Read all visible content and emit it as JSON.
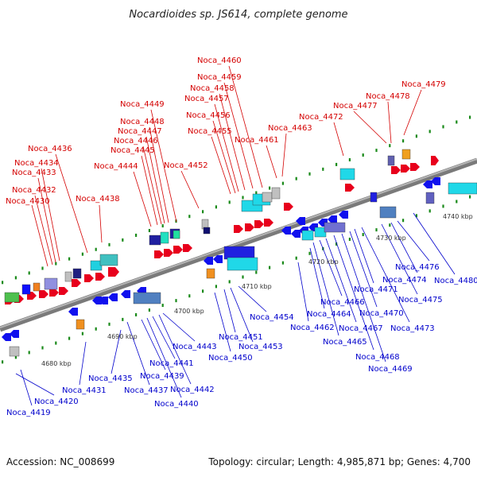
{
  "title": "Nocardioides sp. JS614, complete genome",
  "footer": {
    "accession": "Accession: NC_008699",
    "summary": "Topology: circular; Length: 4,985,871 bp; Genes: 4,700"
  },
  "colors": {
    "forward_label": "#d40000",
    "reverse_label": "#0000cc",
    "backbone": "#8c8c8c",
    "tick": "#1a8a1a"
  },
  "scale_labels": [
    "4680 kbp",
    "4690 kbp",
    "4700 kbp",
    "4710 kbp",
    "4720 kbp",
    "4730 kbp",
    "4740 kbp"
  ],
  "forward_genes": [
    "Noca_4430",
    "Noca_4432",
    "Noca_4433",
    "Noca_4434",
    "Noca_4436",
    "Noca_4438",
    "Noca_4444",
    "Noca_4445",
    "Noca_4446",
    "Noca_4447",
    "Noca_4448",
    "Noca_4449",
    "Noca_4452",
    "Noca_4455",
    "Noca_4456",
    "Noca_4457",
    "Noca_4458",
    "Noca_4459",
    "Noca_4460",
    "Noca_4461",
    "Noca_4463",
    "Noca_4472",
    "Noca_4477",
    "Noca_4478",
    "Noca_4479"
  ],
  "reverse_genes": [
    "Noca_4419",
    "Noca_4420",
    "Noca_4431",
    "Noca_4435",
    "Noca_4437",
    "Noca_4439",
    "Noca_4440",
    "Noca_4441",
    "Noca_4442",
    "Noca_4443",
    "Noca_4450",
    "Noca_4451",
    "Noca_4453",
    "Noca_4454",
    "Noca_4462",
    "Noca_4464",
    "Noca_4465",
    "Noca_4466",
    "Noca_4467",
    "Noca_4468",
    "Noca_4469",
    "Noca_4470",
    "Noca_4471",
    "Noca_4473",
    "Noca_4474",
    "Noca_4475",
    "Noca_4476",
    "Noca_4480"
  ]
}
